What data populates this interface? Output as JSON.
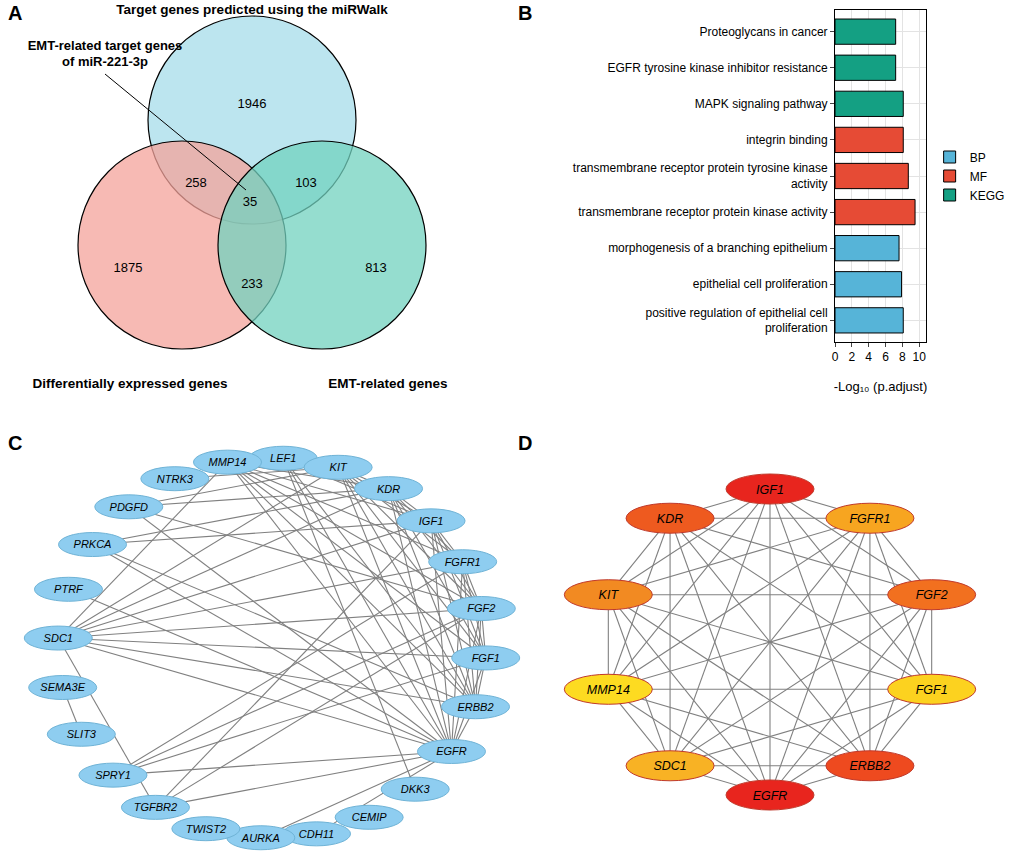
{
  "chart_data": [
    {
      "type": "venn",
      "panel": "A",
      "sets": [
        {
          "label": "Target genes predicted using the miRWalk",
          "color": "#a6dcea"
        },
        {
          "label": "Differentially expressed genes",
          "color": "#f4a39b"
        },
        {
          "label": "EMT-related genes",
          "color": "#72d2bf"
        }
      ],
      "regions": [
        {
          "sets": [
            0
          ],
          "value": 1946
        },
        {
          "sets": [
            1
          ],
          "value": 1875
        },
        {
          "sets": [
            2
          ],
          "value": 813
        },
        {
          "sets": [
            0,
            1
          ],
          "value": 258
        },
        {
          "sets": [
            0,
            2
          ],
          "value": 103
        },
        {
          "sets": [
            1,
            2
          ],
          "value": 233
        },
        {
          "sets": [
            0,
            1,
            2
          ],
          "value": 35
        }
      ],
      "annotations": [
        {
          "lines": [
            "EMT-related target genes",
            "of miR-221-3p"
          ],
          "region": 6
        }
      ]
    },
    {
      "type": "bar",
      "panel": "B",
      "orientation": "horizontal",
      "categories": [
        "positive regulation of epithelial cell proliferation",
        "epithelial cell proliferation",
        "morphogenesis of a branching epithelium",
        "transmembrane receptor protein kinase activity",
        "transmembrane receptor protein tyrosine kinase activity",
        "integrin binding",
        "MAPK signaling pathway",
        "EGFR tyrosine kinase inhibitor resistance",
        "Proteoglycans in cancer"
      ],
      "series": [
        {
          "name": "BP",
          "color": "#56b4d8",
          "values": [
            8.1,
            7.9,
            7.6,
            null,
            null,
            null,
            null,
            null,
            null
          ]
        },
        {
          "name": "MF",
          "color": "#e64b35",
          "values": [
            null,
            null,
            null,
            9.5,
            8.7,
            8.1,
            null,
            null,
            null
          ]
        },
        {
          "name": "KEGG",
          "color": "#14a083",
          "values": [
            null,
            null,
            null,
            null,
            null,
            null,
            8.1,
            7.2,
            7.2
          ]
        }
      ],
      "x_label": "-Log₁₀ (p.adjust)",
      "xlim": [
        0,
        10.8
      ],
      "xticks": [
        0,
        2,
        4,
        6,
        8,
        10
      ],
      "grid": true,
      "legend": "right"
    },
    {
      "type": "network",
      "panel": "C",
      "color": "#8ecdf0",
      "nodes": [
        "LEF1",
        "KIT",
        "KDR",
        "IGF1",
        "FGFR1",
        "FGF2",
        "FGF1",
        "ERBB2",
        "EGFR",
        "DKK3",
        "CEMIP",
        "CDH11",
        "AURKA",
        "TWIST2",
        "TGFBR2",
        "SPRY1",
        "SLIT3",
        "SEMA3E",
        "SDC1",
        "PTRF",
        "PRKCA",
        "PDGFD",
        "NTRK3",
        "MMP14"
      ],
      "edges": [
        [
          "IGF1",
          "KDR"
        ],
        [
          "IGF1",
          "KIT"
        ],
        [
          "IGF1",
          "FGFR1"
        ],
        [
          "IGF1",
          "FGF2"
        ],
        [
          "IGF1",
          "FGF1"
        ],
        [
          "IGF1",
          "ERBB2"
        ],
        [
          "IGF1",
          "EGFR"
        ],
        [
          "IGF1",
          "SDC1"
        ],
        [
          "IGF1",
          "MMP14"
        ],
        [
          "KDR",
          "KIT"
        ],
        [
          "KDR",
          "FGFR1"
        ],
        [
          "KDR",
          "FGF2"
        ],
        [
          "KDR",
          "FGF1"
        ],
        [
          "KDR",
          "ERBB2"
        ],
        [
          "KDR",
          "EGFR"
        ],
        [
          "KDR",
          "SDC1"
        ],
        [
          "KDR",
          "MMP14"
        ],
        [
          "KIT",
          "FGFR1"
        ],
        [
          "KIT",
          "FGF2"
        ],
        [
          "KIT",
          "FGF1"
        ],
        [
          "KIT",
          "ERBB2"
        ],
        [
          "KIT",
          "EGFR"
        ],
        [
          "KIT",
          "SDC1"
        ],
        [
          "KIT",
          "MMP14"
        ],
        [
          "FGFR1",
          "FGF2"
        ],
        [
          "FGFR1",
          "FGF1"
        ],
        [
          "FGFR1",
          "ERBB2"
        ],
        [
          "FGFR1",
          "EGFR"
        ],
        [
          "FGFR1",
          "SDC1"
        ],
        [
          "FGFR1",
          "MMP14"
        ],
        [
          "FGF2",
          "FGF1"
        ],
        [
          "FGF2",
          "ERBB2"
        ],
        [
          "FGF2",
          "EGFR"
        ],
        [
          "FGF2",
          "SDC1"
        ],
        [
          "FGF2",
          "MMP14"
        ],
        [
          "FGF1",
          "ERBB2"
        ],
        [
          "FGF1",
          "EGFR"
        ],
        [
          "FGF1",
          "SDC1"
        ],
        [
          "FGF1",
          "MMP14"
        ],
        [
          "ERBB2",
          "EGFR"
        ],
        [
          "ERBB2",
          "SDC1"
        ],
        [
          "ERBB2",
          "MMP14"
        ],
        [
          "EGFR",
          "SDC1"
        ],
        [
          "EGFR",
          "MMP14"
        ],
        [
          "SDC1",
          "MMP14"
        ],
        [
          "LEF1",
          "EGFR"
        ],
        [
          "LEF1",
          "ERBB2"
        ],
        [
          "LEF1",
          "IGF1"
        ],
        [
          "LEF1",
          "DKK3"
        ],
        [
          "PDGFD",
          "KDR"
        ],
        [
          "PDGFD",
          "FGF2"
        ],
        [
          "PDGFD",
          "EGFR"
        ],
        [
          "PDGFD",
          "KIT"
        ],
        [
          "PRKCA",
          "EGFR"
        ],
        [
          "PRKCA",
          "ERBB2"
        ],
        [
          "PRKCA",
          "KDR"
        ],
        [
          "PRKCA",
          "IGF1"
        ],
        [
          "PTRF",
          "EGFR"
        ],
        [
          "SEMA3E",
          "SLIT3"
        ],
        [
          "SPRY1",
          "FGF2"
        ],
        [
          "SPRY1",
          "FGFR1"
        ],
        [
          "SPRY1",
          "EGFR"
        ],
        [
          "SPRY1",
          "FGF1"
        ],
        [
          "TGFBR2",
          "EGFR"
        ],
        [
          "TGFBR2",
          "SDC1"
        ],
        [
          "TGFBR2",
          "FGF2"
        ],
        [
          "TGFBR2",
          "IGF1"
        ],
        [
          "AURKA",
          "EGFR"
        ],
        [
          "CDH11",
          "EGFR"
        ],
        [
          "NTRK3",
          "KIT"
        ]
      ]
    },
    {
      "type": "network",
      "panel": "D",
      "nodes": [
        "IGF1",
        "FGFR1",
        "FGF2",
        "FGF1",
        "ERBB2",
        "EGFR",
        "SDC1",
        "MMP14",
        "KIT",
        "KDR"
      ],
      "colors": [
        "#e8251e",
        "#f7a520",
        "#f2701f",
        "#fcd21f",
        "#ee4a1f",
        "#e8251e",
        "#f8b224",
        "#fddb21",
        "#f28a22",
        "#ee5a1f"
      ],
      "edges": [
        [
          "IGF1",
          "FGFR1"
        ],
        [
          "IGF1",
          "FGF2"
        ],
        [
          "IGF1",
          "FGF1"
        ],
        [
          "IGF1",
          "ERBB2"
        ],
        [
          "IGF1",
          "EGFR"
        ],
        [
          "IGF1",
          "SDC1"
        ],
        [
          "IGF1",
          "MMP14"
        ],
        [
          "IGF1",
          "KIT"
        ],
        [
          "IGF1",
          "KDR"
        ],
        [
          "FGFR1",
          "FGF2"
        ],
        [
          "FGFR1",
          "FGF1"
        ],
        [
          "FGFR1",
          "ERBB2"
        ],
        [
          "FGFR1",
          "EGFR"
        ],
        [
          "FGFR1",
          "SDC1"
        ],
        [
          "FGFR1",
          "MMP14"
        ],
        [
          "FGFR1",
          "KIT"
        ],
        [
          "FGFR1",
          "KDR"
        ],
        [
          "FGF2",
          "FGF1"
        ],
        [
          "FGF2",
          "ERBB2"
        ],
        [
          "FGF2",
          "EGFR"
        ],
        [
          "FGF2",
          "SDC1"
        ],
        [
          "FGF2",
          "MMP14"
        ],
        [
          "FGF2",
          "KIT"
        ],
        [
          "FGF2",
          "KDR"
        ],
        [
          "FGF1",
          "ERBB2"
        ],
        [
          "FGF1",
          "EGFR"
        ],
        [
          "FGF1",
          "SDC1"
        ],
        [
          "FGF1",
          "MMP14"
        ],
        [
          "FGF1",
          "KIT"
        ],
        [
          "FGF1",
          "KDR"
        ],
        [
          "ERBB2",
          "EGFR"
        ],
        [
          "ERBB2",
          "SDC1"
        ],
        [
          "ERBB2",
          "MMP14"
        ],
        [
          "ERBB2",
          "KIT"
        ],
        [
          "ERBB2",
          "KDR"
        ],
        [
          "EGFR",
          "SDC1"
        ],
        [
          "EGFR",
          "MMP14"
        ],
        [
          "EGFR",
          "KIT"
        ],
        [
          "EGFR",
          "KDR"
        ],
        [
          "SDC1",
          "MMP14"
        ],
        [
          "SDC1",
          "KIT"
        ],
        [
          "SDC1",
          "KDR"
        ],
        [
          "MMP14",
          "KIT"
        ],
        [
          "MMP14",
          "KDR"
        ],
        [
          "KIT",
          "KDR"
        ]
      ]
    }
  ]
}
